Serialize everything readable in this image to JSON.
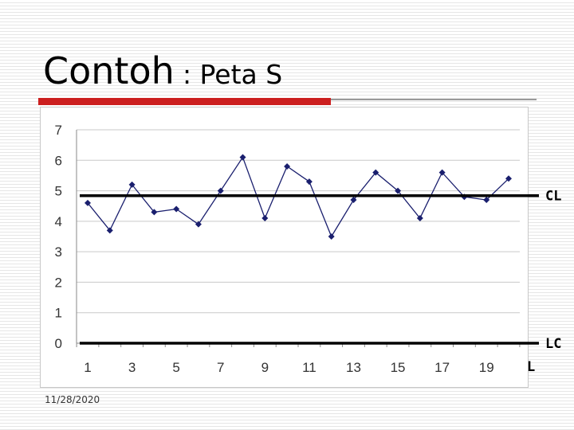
{
  "slide": {
    "title": "Contoh",
    "subtitle": ": Peta S",
    "date": "11/28/2020"
  },
  "colors": {
    "accent_red": "#cc1f1f",
    "series": "#1a1f6e",
    "control_line": "#000000"
  },
  "chart_data": {
    "type": "line",
    "x": [
      1,
      2,
      3,
      4,
      5,
      6,
      7,
      8,
      9,
      10,
      11,
      12,
      13,
      14,
      15,
      16,
      17,
      18,
      19,
      20
    ],
    "values": [
      4.6,
      3.7,
      5.2,
      4.3,
      4.4,
      3.9,
      5.0,
      6.1,
      4.1,
      5.8,
      5.3,
      3.5,
      4.7,
      5.6,
      5.0,
      4.1,
      5.6,
      4.8,
      4.7,
      5.4
    ],
    "xticks": [
      1,
      3,
      5,
      7,
      9,
      11,
      13,
      15,
      17,
      19
    ],
    "yticks": [
      0,
      1,
      2,
      3,
      4,
      5,
      6,
      7
    ],
    "ylim": [
      0,
      7
    ],
    "xlim": [
      1,
      20
    ],
    "grid": "horizontal",
    "control_lines": [
      {
        "label": "CL",
        "value": 4.84
      },
      {
        "label": "LC",
        "value": 0
      }
    ],
    "extra_label": "L"
  }
}
